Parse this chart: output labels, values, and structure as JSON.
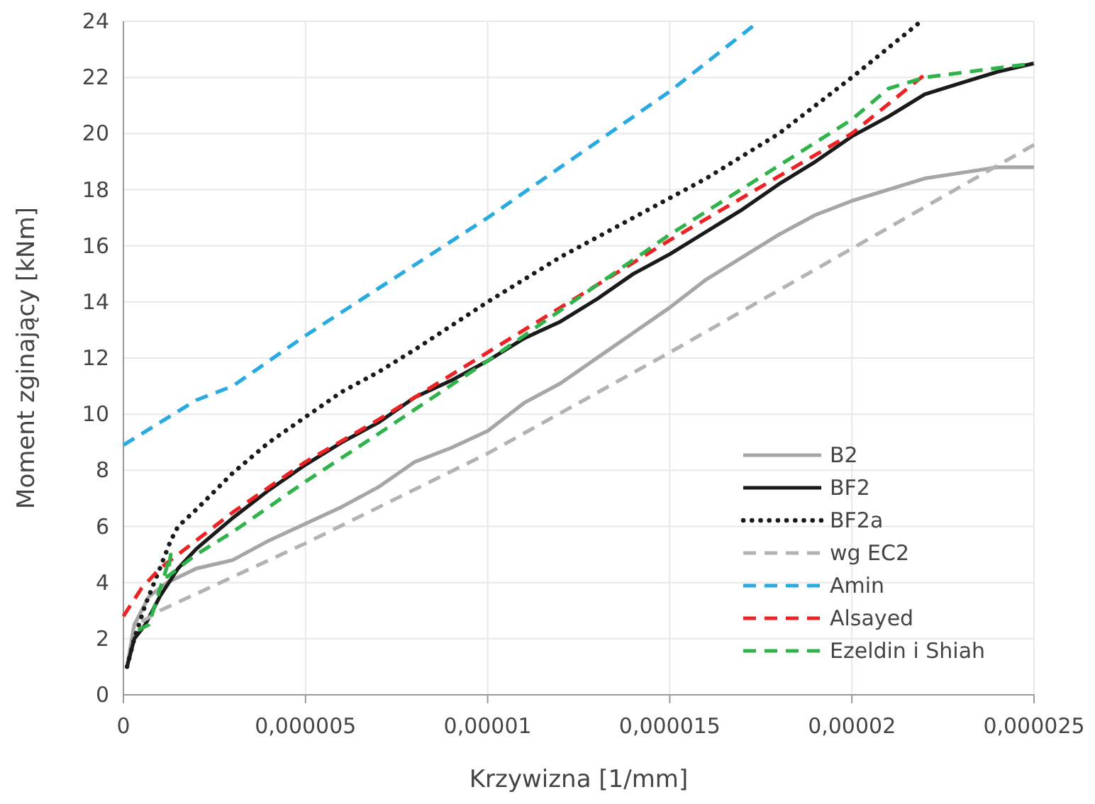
{
  "chart_data": {
    "type": "line",
    "xlabel": "Krzywizna [1/mm]",
    "ylabel": "Moment zginający [kNm]",
    "xlim": [
      0,
      2.5e-05
    ],
    "ylim": [
      0,
      24
    ],
    "xticks": [
      0,
      {
        "value": 5e-06,
        "label": "0,000005"
      },
      {
        "value": 1e-05,
        "label": "0,00001"
      },
      {
        "value": 1.5e-05,
        "label": "0,000015"
      },
      {
        "value": 2e-05,
        "label": "0,00002"
      },
      {
        "value": 2.5e-05,
        "label": "0,000025"
      }
    ],
    "yticks": [
      0,
      2,
      4,
      6,
      8,
      10,
      12,
      14,
      16,
      18,
      20,
      22,
      24
    ],
    "grid": true,
    "legend": "bottom right",
    "series": [
      {
        "name": "B2",
        "color": "#a6a6a6",
        "line_style": "solid",
        "x": [
          1e-07,
          3e-07,
          7e-07,
          1.2e-06,
          2e-06,
          3e-06,
          4e-06,
          5e-06,
          6e-06,
          7e-06,
          8e-06,
          9e-06,
          1e-05,
          1.1e-05,
          1.2e-05,
          1.3e-05,
          1.4e-05,
          1.5e-05,
          1.6e-05,
          1.7e-05,
          1.8e-05,
          1.9e-05,
          2e-05,
          2.1e-05,
          2.2e-05,
          2.3e-05,
          2.4e-05,
          2.5e-05
        ],
        "values": [
          1.0,
          2.5,
          3.5,
          4.0,
          4.5,
          4.8,
          5.5,
          6.1,
          6.7,
          7.4,
          8.3,
          8.8,
          9.4,
          10.4,
          11.1,
          12.0,
          12.9,
          13.8,
          14.8,
          15.6,
          16.4,
          17.1,
          17.6,
          18.0,
          18.4,
          18.6,
          18.8,
          18.8
        ]
      },
      {
        "name": "BF2",
        "color": "#1a1a1a",
        "line_style": "solid",
        "x": [
          1e-07,
          3e-07,
          6e-07,
          1e-06,
          1.5e-06,
          2e-06,
          3e-06,
          4e-06,
          5e-06,
          6e-06,
          7e-06,
          8e-06,
          9e-06,
          1e-05,
          1.1e-05,
          1.2e-05,
          1.3e-05,
          1.4e-05,
          1.5e-05,
          1.6e-05,
          1.7e-05,
          1.8e-05,
          1.9e-05,
          2e-05,
          2.1e-05,
          2.2e-05,
          2.3e-05,
          2.4e-05,
          2.5e-05
        ],
        "values": [
          1.0,
          2.0,
          2.5,
          3.5,
          4.5,
          5.2,
          6.3,
          7.3,
          8.2,
          9.0,
          9.7,
          10.6,
          11.2,
          11.9,
          12.7,
          13.3,
          14.1,
          15.0,
          15.7,
          16.5,
          17.3,
          18.2,
          19.0,
          19.9,
          20.6,
          21.4,
          21.8,
          22.2,
          22.5
        ]
      },
      {
        "name": "BF2a",
        "color": "#1a1a1a",
        "line_style": "dotted",
        "x": [
          1e-07,
          3e-07,
          6e-07,
          1e-06,
          1.3e-06,
          1.5e-06,
          2e-06,
          3e-06,
          4e-06,
          5e-06,
          6e-06,
          7e-06,
          8e-06,
          1e-05,
          1.2e-05,
          1.4e-05,
          1.6e-05,
          1.8e-05,
          2e-05,
          2.19e-05
        ],
        "values": [
          1.0,
          2.0,
          3.2,
          4.5,
          5.5,
          6.0,
          6.6,
          7.9,
          9.0,
          9.9,
          10.8,
          11.5,
          12.3,
          14.0,
          15.6,
          17.0,
          18.4,
          20.0,
          22.0,
          24.0
        ]
      },
      {
        "name": "wg EC2",
        "color": "#b3b3b3",
        "line_style": "dashed",
        "x": [
          5e-07,
          1e-06,
          2e-06,
          3e-06,
          5e-06,
          1e-05,
          1.5e-05,
          2e-05,
          2.5e-05
        ],
        "values": [
          2.6,
          3.0,
          3.6,
          4.2,
          5.4,
          8.6,
          12.2,
          15.9,
          19.6
        ]
      },
      {
        "name": "Amin",
        "color": "#29abe2",
        "line_style": "dashed",
        "x": [
          0,
          1e-06,
          2e-06,
          3e-06,
          5e-06,
          1e-05,
          1.5e-05,
          1.745e-05
        ],
        "values": [
          8.9,
          9.7,
          10.5,
          11.0,
          12.8,
          17.0,
          21.5,
          24.0
        ]
      },
      {
        "name": "Alsayed",
        "color": "#ed2224",
        "line_style": "dashed",
        "x": [
          0,
          5e-07,
          1e-06,
          2e-06,
          3e-06,
          5e-06,
          7e-06,
          1e-05,
          1.5e-05,
          2e-05,
          2.2e-05
        ],
        "values": [
          2.8,
          3.8,
          4.5,
          5.5,
          6.5,
          8.3,
          9.8,
          12.2,
          16.2,
          20.0,
          22.1
        ]
      },
      {
        "name": "Ezeldin i Shiah",
        "color": "#2fb34a",
        "line_style": "dashed",
        "x": [
          4e-07,
          7e-07,
          1.3e-06,
          1.2e-06,
          2e-06,
          3e-06,
          5e-06,
          7e-06,
          1e-05,
          1.5e-05,
          2e-05,
          2.1e-05,
          2.2e-05,
          2.5e-05
        ],
        "values": [
          2.3,
          2.5,
          5.0,
          4.2,
          5.0,
          5.8,
          7.6,
          9.3,
          11.9,
          16.4,
          20.5,
          21.6,
          22.0,
          22.5
        ]
      }
    ]
  }
}
